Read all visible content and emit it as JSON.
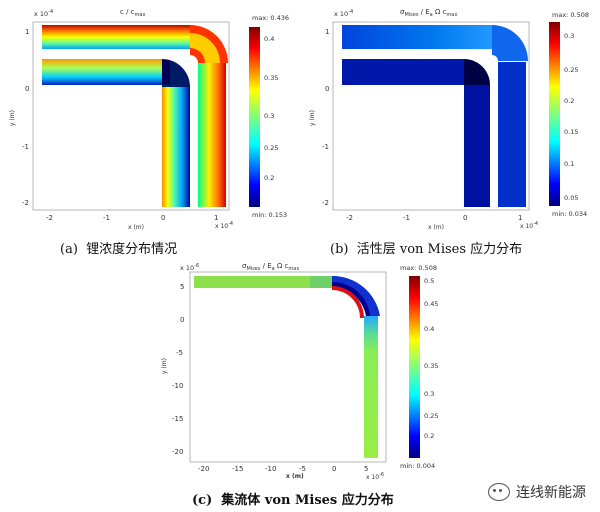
{
  "figure": {
    "panels": [
      {
        "id": "a",
        "title_main": "c / c",
        "title_sub": "max",
        "exponent": "x 10",
        "exponent_pow": "-4",
        "xlabel": "x (m)",
        "ylabel": "y (m)",
        "x_ticks": [
          "-2",
          "-1",
          "0",
          "1"
        ],
        "y_ticks": [
          "1",
          "0",
          "-1",
          "-2"
        ],
        "colorbar": {
          "max_label": "max: 0.436",
          "min_label": "min: 0.153",
          "ticks": [
            "0.4",
            "0.35",
            "0.3",
            "0.25",
            "0.2"
          ]
        },
        "caption_label": "(a)",
        "caption_text": "锂浓度分布情况"
      },
      {
        "id": "b",
        "title_main": "σ",
        "title_sub1": "Mises",
        "title_mid": " / E",
        "title_sub2": "a",
        "title_tail": " Ω c",
        "title_sub3": "max",
        "exponent": "x 10",
        "exponent_pow": "-4",
        "xlabel": "x (m)",
        "ylabel": "y (m)",
        "x_ticks": [
          "-2",
          "-1",
          "0",
          "1"
        ],
        "y_ticks": [
          "1",
          "0",
          "-1",
          "-2"
        ],
        "colorbar": {
          "max_label": "max: 0.508",
          "min_label": "min: 0.034",
          "ticks": [
            "0.3",
            "0.25",
            "0.2",
            "0.15",
            "0.1",
            "0.05"
          ]
        },
        "caption_label": "(b)",
        "caption_text": "活性层 von Mises 应力分布"
      },
      {
        "id": "c",
        "title_main": "σ",
        "title_sub1": "Mises",
        "title_mid": " / E",
        "title_sub2": "a",
        "title_tail": " Ω c",
        "title_sub3": "max",
        "exponent": "x 10",
        "exponent_pow": "-6",
        "x_exponent": "x 10",
        "x_exponent_pow": "-6",
        "xlabel": "x (m)",
        "ylabel": "y (m)",
        "x_ticks": [
          "-20",
          "-15",
          "-10",
          "-5",
          "0",
          "5"
        ],
        "y_ticks": [
          "5",
          "0",
          "-5",
          "-10",
          "-15",
          "-20"
        ],
        "colorbar": {
          "max_label": "max: 0.508",
          "min_label": "min: 0.004",
          "ticks": [
            "0.5",
            "0.45",
            "0.4",
            "0.35",
            "0.3",
            "0.25",
            "0.2"
          ]
        },
        "caption_label": "(c)",
        "caption_text": "集流体 von Mises 应力分布"
      }
    ],
    "watermark": "连线新能源"
  }
}
